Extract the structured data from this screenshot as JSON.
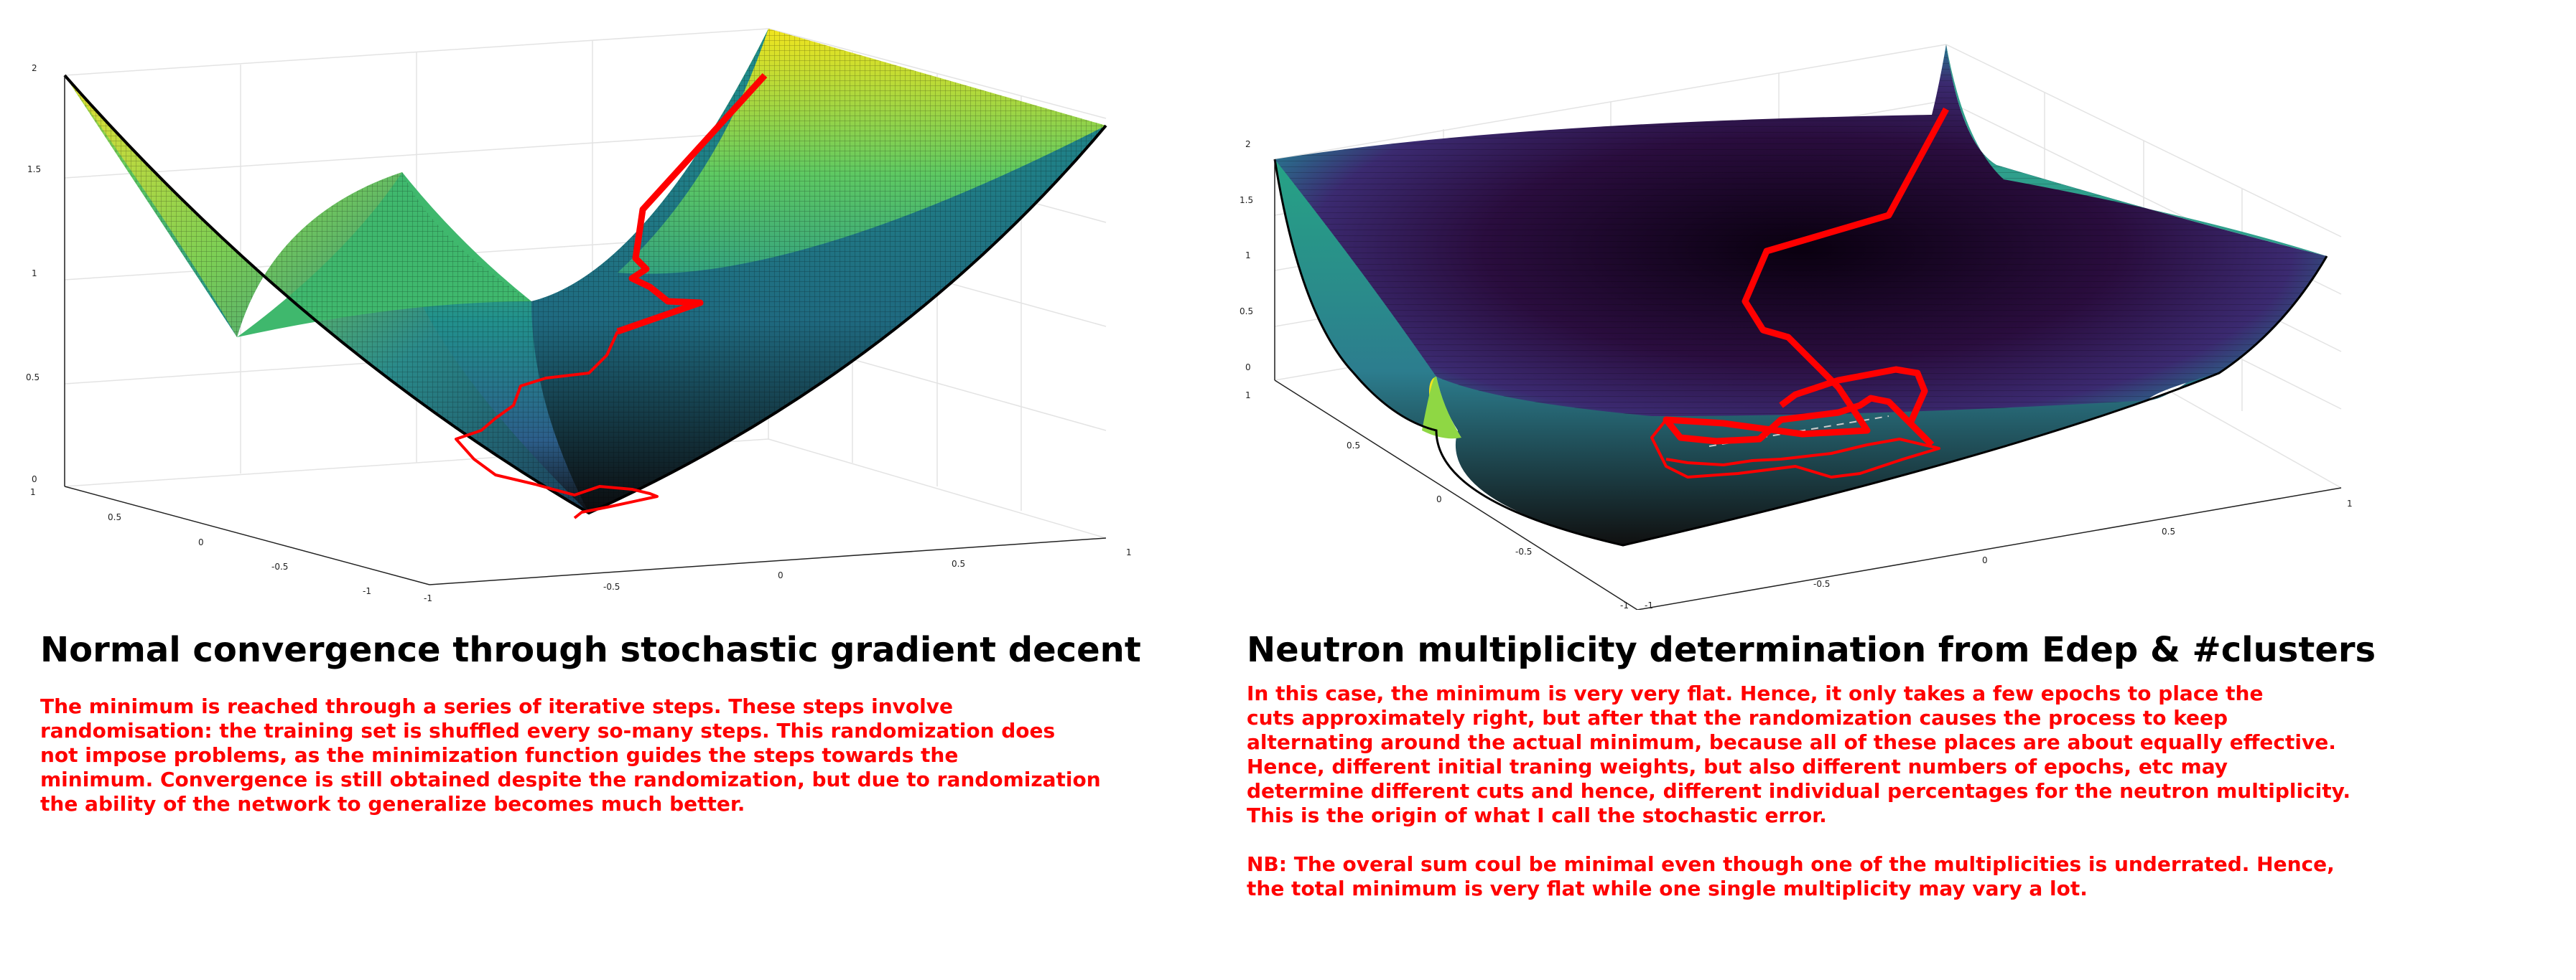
{
  "left": {
    "title": "Normal convergence through stochastic gradient decent",
    "description": [
      "The minimum is reached through a series of iterative steps.  These steps involve",
      "randomisation: the training set is shuffled every so-many steps. This randomization does",
      "not impose problems, as the minimization function guides the steps towards the",
      "minimum. Convergence is still obtained despite the randomization, but due to randomization",
      "the ability of the network to generalize becomes much better."
    ],
    "z_ticks": [
      "2",
      "1.5",
      "1",
      "0.5",
      "0"
    ],
    "y_ticks": [
      "1",
      "0.5",
      "0",
      "-0.5",
      "-1"
    ],
    "x_ticks": [
      "-1",
      "-0.5",
      "0",
      "0.5",
      "1"
    ]
  },
  "right": {
    "title": "Neutron multiplicity determination from Edep & #clusters",
    "description": [
      "In this case, the minimum is very very flat. Hence, it only takes a few epochs to place the",
      "cuts approximately right, but after that the randomization causes the process to keep",
      "alternating around the actual minimum, because all of these places are about equally effective.",
      "Hence, different initial traning weights, but also different numbers of epochs, etc may",
      "determine different cuts and hence, different individual percentages for the neutron multiplicity.",
      "This is the origin of what I call the stochastic error.",
      "",
      "NB: The overal sum coul be minimal even though one of the multiplicities is underrated. Hence,",
      "the total minimum is very flat while one single multiplicity may vary a lot."
    ],
    "z_ticks": [
      "2",
      "1.5",
      "1",
      "0.5",
      "0"
    ],
    "y_ticks": [
      "1",
      "0.5",
      "0",
      "-0.5",
      "-1"
    ],
    "x_ticks": [
      "-1",
      "-0.5",
      "0",
      "0.5",
      "1"
    ]
  },
  "colors": {
    "path": "#ff0000",
    "surface_high": "#f2e51d",
    "surface_mid": "#21918c",
    "surface_low": "#440154",
    "text_red": "#ff0000"
  }
}
